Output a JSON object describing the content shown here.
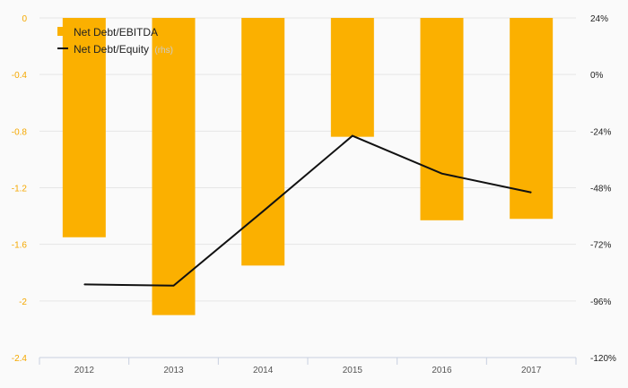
{
  "chart_data": {
    "type": "bar",
    "categories": [
      "2012",
      "2013",
      "2014",
      "2015",
      "2016",
      "2017"
    ],
    "series": [
      {
        "name": "Net Debt/EBITDA",
        "type": "bar",
        "axis": "left",
        "color": "#fbb000",
        "values": [
          -1.55,
          -2.1,
          -1.75,
          -0.84,
          -1.43,
          -1.42
        ]
      },
      {
        "name": "Net Debt/Equity",
        "type": "line",
        "axis": "right",
        "color": "#111111",
        "values": [
          -89,
          -89.5,
          -58,
          -26,
          -42,
          -50
        ]
      }
    ],
    "legend_suffix": "(rhs)",
    "left_axis": {
      "ticks": [
        0,
        -0.4,
        -0.8,
        -1.2,
        -1.6,
        -2,
        -2.4
      ],
      "tick_labels": [
        "0",
        "-0.4",
        "-0.8",
        "-1.2",
        "-1.6",
        "-2",
        "-2.4"
      ],
      "range": [
        -2.4,
        0
      ],
      "color": "#f5a800"
    },
    "right_axis": {
      "ticks": [
        24,
        0,
        -24,
        -48,
        -72,
        -96,
        -120
      ],
      "tick_labels": [
        "24%",
        "0%",
        "-24%",
        "-48%",
        "-72%",
        "-96%",
        "-120%"
      ],
      "range": [
        -120,
        24
      ]
    },
    "grid": true,
    "legend_position": "top-left"
  }
}
